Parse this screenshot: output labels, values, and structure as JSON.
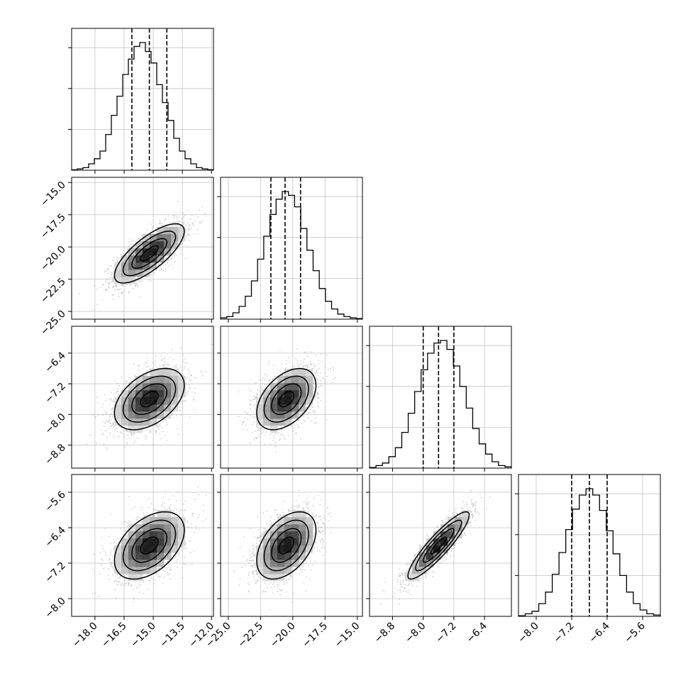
{
  "chart_data": {
    "type": "corner",
    "grid": true,
    "parameters": [
      {
        "range": [
          -19.2,
          -11.9
        ],
        "xticks": [
          -18.0,
          -16.5,
          -15.0,
          -13.5,
          -12.0
        ],
        "xtick_labels": [
          "−18.0",
          "−16.5",
          "−15.0",
          "−13.5",
          "−12.0"
        ],
        "quantile_lines": [
          -16.1,
          -15.2,
          -14.3
        ],
        "mean": -15.2,
        "sd": 0.9
      },
      {
        "range": [
          -25.6,
          -14.6
        ],
        "xticks": [
          -25.0,
          -22.5,
          -20.0,
          -17.5,
          -15.0
        ],
        "xtick_labels": [
          "−25.0",
          "−22.5",
          "−20.0",
          "−17.5",
          "−15.0"
        ],
        "yticks": [
          -15.0,
          -17.5,
          -20.0,
          -22.5,
          -25.0
        ],
        "ytick_labels": [
          "−15.0",
          "−17.5",
          "−20.0",
          "−22.5",
          "−25.0"
        ],
        "quantile_lines": [
          -21.7,
          -20.6,
          -19.4
        ],
        "mean": -20.5,
        "sd": 1.15
      },
      {
        "range": [
          -9.4,
          -5.7
        ],
        "xticks": [
          -8.8,
          -8.0,
          -7.2,
          -6.4
        ],
        "xtick_labels": [
          "−8.8",
          "−8.0",
          "−7.2",
          "−6.4"
        ],
        "yticks": [
          -6.4,
          -7.2,
          -8.0,
          -8.8
        ],
        "ytick_labels": [
          "−6.4",
          "−7.2",
          "−8.0",
          "−8.8"
        ],
        "quantile_lines": [
          -8.0,
          -7.6,
          -7.2
        ],
        "mean": -7.6,
        "sd": 0.4
      },
      {
        "range": [
          -8.4,
          -5.2
        ],
        "xticks": [
          -8.0,
          -7.2,
          -6.4,
          -5.6
        ],
        "xtick_labels": [
          "−8.0",
          "−7.2",
          "−6.4",
          "−5.6"
        ],
        "yticks": [
          -5.6,
          -6.4,
          -7.2,
          -8.0
        ],
        "ytick_labels": [
          "−5.6",
          "−6.4",
          "−7.2",
          "−8.0"
        ],
        "quantile_lines": [
          -7.2,
          -6.8,
          -6.4
        ],
        "mean": -6.8,
        "sd": 0.38
      }
    ],
    "histograms": [
      [
        0.003,
        0.01,
        0.02,
        0.05,
        0.09,
        0.15,
        0.28,
        0.43,
        0.58,
        0.75,
        0.87,
        0.97,
        1.0,
        0.93,
        0.84,
        0.67,
        0.53,
        0.39,
        0.25,
        0.15,
        0.09,
        0.05,
        0.02,
        0.01,
        0.004
      ],
      [
        0.01,
        0.02,
        0.05,
        0.1,
        0.18,
        0.3,
        0.47,
        0.65,
        0.82,
        0.94,
        1.0,
        0.97,
        0.88,
        0.71,
        0.54,
        0.38,
        0.24,
        0.14,
        0.08,
        0.04,
        0.02,
        0.01,
        0.005
      ],
      [
        0.005,
        0.02,
        0.04,
        0.09,
        0.16,
        0.28,
        0.43,
        0.6,
        0.77,
        0.9,
        0.98,
        1.0,
        0.93,
        0.8,
        0.64,
        0.47,
        0.31,
        0.19,
        0.11,
        0.05,
        0.02,
        0.01
      ],
      [
        0.005,
        0.02,
        0.04,
        0.1,
        0.19,
        0.33,
        0.5,
        0.68,
        0.84,
        0.95,
        1.0,
        0.95,
        0.83,
        0.67,
        0.49,
        0.32,
        0.19,
        0.1,
        0.05,
        0.02,
        0.01
      ]
    ],
    "pairs": [
      {
        "x": 0,
        "y": 1,
        "corr": 0.75
      },
      {
        "x": 0,
        "y": 2,
        "corr": 0.45
      },
      {
        "x": 1,
        "y": 2,
        "corr": 0.45
      },
      {
        "x": 0,
        "y": 3,
        "corr": 0.45
      },
      {
        "x": 1,
        "y": 3,
        "corr": 0.45
      },
      {
        "x": 2,
        "y": 3,
        "corr": 0.9
      }
    ],
    "colors": {
      "samples": "#9a9a9a",
      "contour": "#000000",
      "grid": "#c4c4c4",
      "density": "#000000"
    }
  }
}
